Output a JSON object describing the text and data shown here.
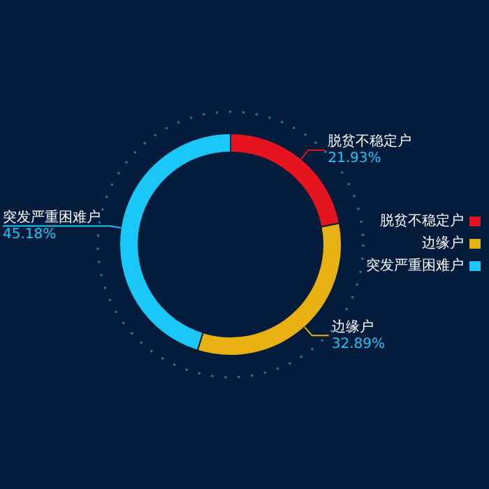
{
  "chart_data": {
    "type": "donut",
    "categories": [
      "脱贫不稳定户",
      "边缘户",
      "突发严重困难户"
    ],
    "values": [
      21.93,
      32.89,
      45.18
    ],
    "value_labels": [
      "21.93%",
      "32.89%",
      "45.18%"
    ],
    "colors": [
      "#e6141e",
      "#e8b010",
      "#19c8f8"
    ],
    "legend": "right"
  }
}
